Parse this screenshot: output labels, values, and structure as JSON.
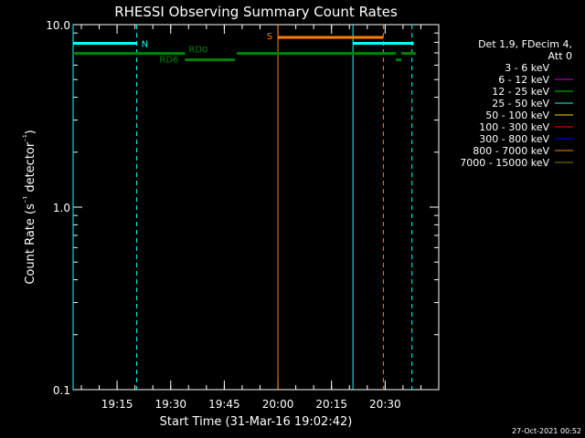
{
  "chart_data": {
    "type": "line",
    "title": "RHESSI Observing Summary Count Rates",
    "xlabel": "Start Time (31-Mar-16 19:02:42)",
    "ylabel": "Count Rate (s⁻¹ detector⁻¹)",
    "yscale": "log",
    "ylim": [
      0.1,
      10.0
    ],
    "xlim": [
      "19:02:42",
      "20:45:00"
    ],
    "x_ticks": [
      "19:15",
      "19:30",
      "19:45",
      "20:00",
      "20:15",
      "20:30"
    ],
    "y_ticks": [
      "0.1",
      "1.0",
      "10.0"
    ],
    "legend_header": [
      "Det 1,9, FDecim 4,",
      "Att 0"
    ],
    "legend_placement": "right",
    "series": [
      {
        "name": "3 - 6 keV",
        "color": "#000000"
      },
      {
        "name": "6 - 12 keV",
        "color": "#cc00cc"
      },
      {
        "name": "12 - 25 keV",
        "color": "#00cc00"
      },
      {
        "name": "25 - 50 keV",
        "color": "#00ffff"
      },
      {
        "name": "50 - 100 keV",
        "color": "#ffcc00"
      },
      {
        "name": "100 - 300 keV",
        "color": "#ff0000"
      },
      {
        "name": "300 - 800 keV",
        "color": "#0000ff"
      },
      {
        "name": "800 - 7000 keV",
        "color": "#ff8000"
      },
      {
        "name": "7000 - 15000 keV",
        "color": "#808000"
      }
    ],
    "flag_bars": [
      {
        "label": "N",
        "color": "#00ffff",
        "segments": [
          [
            "19:02:42",
            "19:20:30"
          ],
          [
            "20:21:00",
            "20:38:00"
          ]
        ]
      },
      {
        "label": "S",
        "color": "#ff8000",
        "segments": [
          [
            "20:00:00",
            "20:29:30"
          ]
        ]
      },
      {
        "label": "RD0",
        "color": "#008000",
        "segments": [
          [
            "19:02:42",
            "19:34:00"
          ],
          [
            "19:48:30",
            "20:33:00"
          ],
          [
            "20:34:30",
            "20:38:30"
          ]
        ]
      },
      {
        "label": "RD6",
        "color": "#008000",
        "segments": [
          [
            "19:34:00",
            "19:48:00"
          ],
          [
            "20:33:00",
            "20:34:30"
          ]
        ]
      }
    ],
    "vertical_lines": [
      {
        "x": "19:02:42",
        "color": "#00ffff",
        "style": "solid"
      },
      {
        "x": "19:20:30",
        "color": "#00ffff",
        "style": "dashed"
      },
      {
        "x": "20:00:00",
        "color": "#ff8000",
        "style": "solid"
      },
      {
        "x": "20:21:00",
        "color": "#00ffff",
        "style": "solid"
      },
      {
        "x": "20:29:30",
        "color": "#ff8000",
        "style": "dashed"
      },
      {
        "x": "20:37:30",
        "color": "#00ffff",
        "style": "dashed"
      }
    ]
  },
  "footer_timestamp": "27-Oct-2021 00:52"
}
